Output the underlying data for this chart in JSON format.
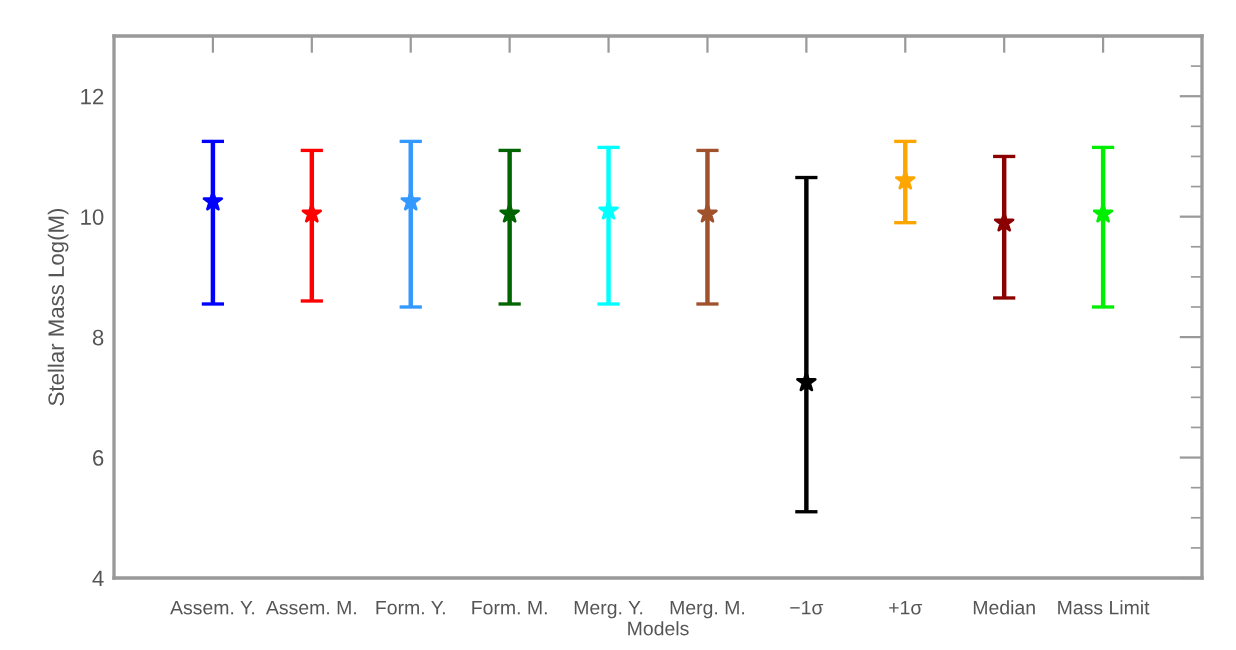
{
  "chart_data": {
    "type": "scatter",
    "xlabel": "Models",
    "ylabel": "Stellar Mass Log(M)",
    "categories": [
      "Assem. Y.",
      "Assem. M.",
      "Form. Y.",
      "Form. M.",
      "Merg. Y.",
      "Merg. M.",
      "−1σ",
      "+1σ",
      "Median",
      "Mass Limit"
    ],
    "values": [
      10.25,
      10.05,
      10.25,
      10.05,
      10.1,
      10.05,
      7.25,
      10.6,
      9.9,
      10.05
    ],
    "errors": [
      [
        8.55,
        11.25
      ],
      [
        8.6,
        11.1
      ],
      [
        8.5,
        11.25
      ],
      [
        8.55,
        11.1
      ],
      [
        8.55,
        11.15
      ],
      [
        8.55,
        11.1
      ],
      [
        5.1,
        10.65
      ],
      [
        9.9,
        11.25
      ],
      [
        8.65,
        11.0
      ],
      [
        8.5,
        11.15
      ]
    ],
    "colors": [
      "#0000ff",
      "#ff0000",
      "#3399ff",
      "#006400",
      "#00ffff",
      "#a0522d",
      "#000000",
      "#ffa500",
      "#8b0000",
      "#00ee00"
    ],
    "ylim": [
      4,
      13
    ],
    "yticks": [
      4,
      6,
      8,
      10,
      12
    ],
    "grid": false,
    "legend": false,
    "marker": "star"
  }
}
